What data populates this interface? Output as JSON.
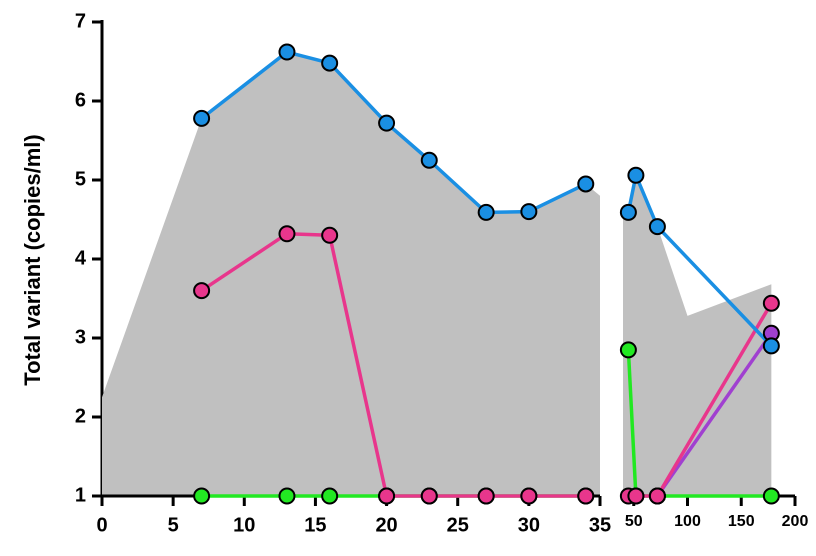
{
  "chart_data": {
    "type": "line",
    "ylabel": "Total variant (copies/ml)",
    "ylim": [
      1,
      7
    ],
    "yticks": [
      1,
      2,
      3,
      4,
      5,
      6,
      7
    ],
    "area_color": "#c0c0c0",
    "panels": [
      {
        "xlim": [
          0,
          35
        ],
        "xticks": [
          0,
          5,
          10,
          15,
          20,
          25,
          30,
          35
        ],
        "area": {
          "x": [
            0,
            7,
            13,
            16,
            20,
            23,
            27,
            30,
            34,
            35
          ],
          "values": [
            2.25,
            5.78,
            6.62,
            6.48,
            5.72,
            5.25,
            4.59,
            4.6,
            4.95,
            4.8
          ]
        },
        "series": [
          {
            "color": "#22e822",
            "x": [
              7,
              13,
              16,
              20,
              23,
              27,
              30,
              34
            ],
            "values": [
              1,
              1,
              1,
              1,
              1,
              1,
              1,
              1
            ]
          },
          {
            "color": "#e8368c",
            "x": [
              7,
              13,
              16,
              20,
              23,
              27,
              30,
              34
            ],
            "values": [
              3.6,
              4.32,
              4.3,
              1,
              1,
              1,
              1,
              1
            ]
          },
          {
            "color": "#1a8fe3",
            "x": [
              7,
              13,
              16,
              20,
              23,
              27,
              30,
              34
            ],
            "values": [
              5.78,
              6.62,
              6.48,
              5.72,
              5.25,
              4.59,
              4.6,
              4.95
            ]
          }
        ]
      },
      {
        "xlim": [
          40,
          200
        ],
        "xticks": [
          50,
          100,
          150,
          200
        ],
        "area": {
          "x": [
            40,
            45,
            52,
            72,
            100,
            178
          ],
          "values": [
            4.59,
            4.59,
            5.06,
            4.41,
            3.28,
            3.68
          ]
        },
        "series": [
          {
            "color": "#22e822",
            "x": [
              45,
              52,
              72,
              178
            ],
            "values": [
              2.85,
              1,
              1,
              1
            ]
          },
          {
            "color": "#a040d0",
            "x": [
              72,
              178
            ],
            "values": [
              1,
              3.06
            ]
          },
          {
            "color": "#e8368c",
            "x": [
              45,
              52,
              72,
              178
            ],
            "values": [
              1,
              1,
              1,
              3.44
            ]
          },
          {
            "color": "#1a8fe3",
            "x": [
              45,
              52,
              72,
              178
            ],
            "values": [
              4.59,
              5.06,
              4.41,
              2.9
            ]
          }
        ]
      }
    ]
  }
}
